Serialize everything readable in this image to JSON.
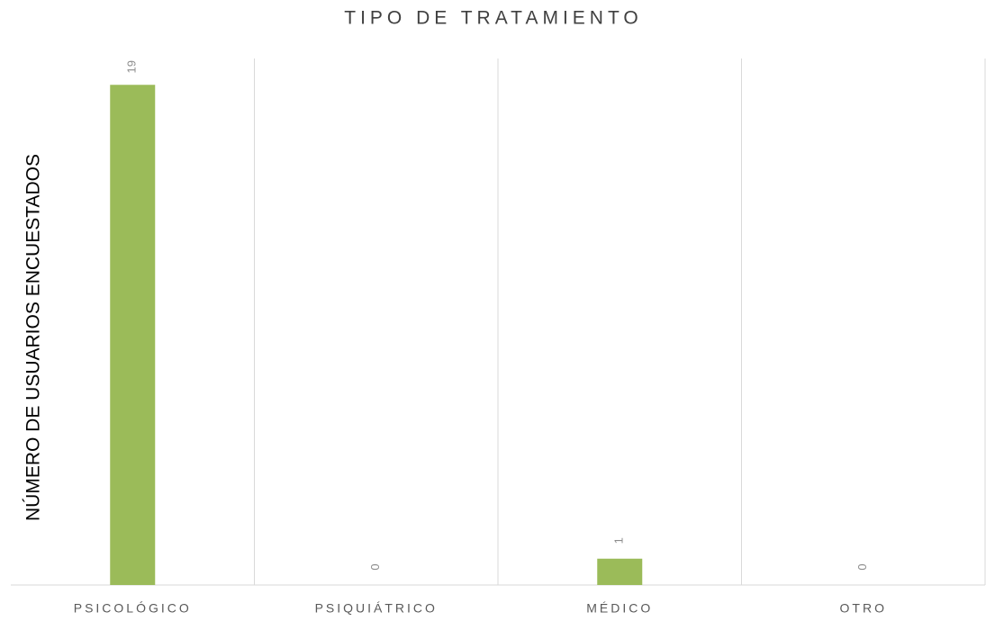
{
  "chart_data": {
    "type": "bar",
    "title": "TIPO DE TRATAMIENTO",
    "y_label": "NÚMERO DE USUARIOS ENCUESTADOS",
    "categories": [
      "PSICOLÓGICO",
      "PSIQUIÁTRICO",
      "MÉDICO",
      "OTRO"
    ],
    "values": [
      19,
      0,
      1,
      0
    ],
    "color": "#9bbb59",
    "ylim": [
      0,
      20
    ]
  }
}
